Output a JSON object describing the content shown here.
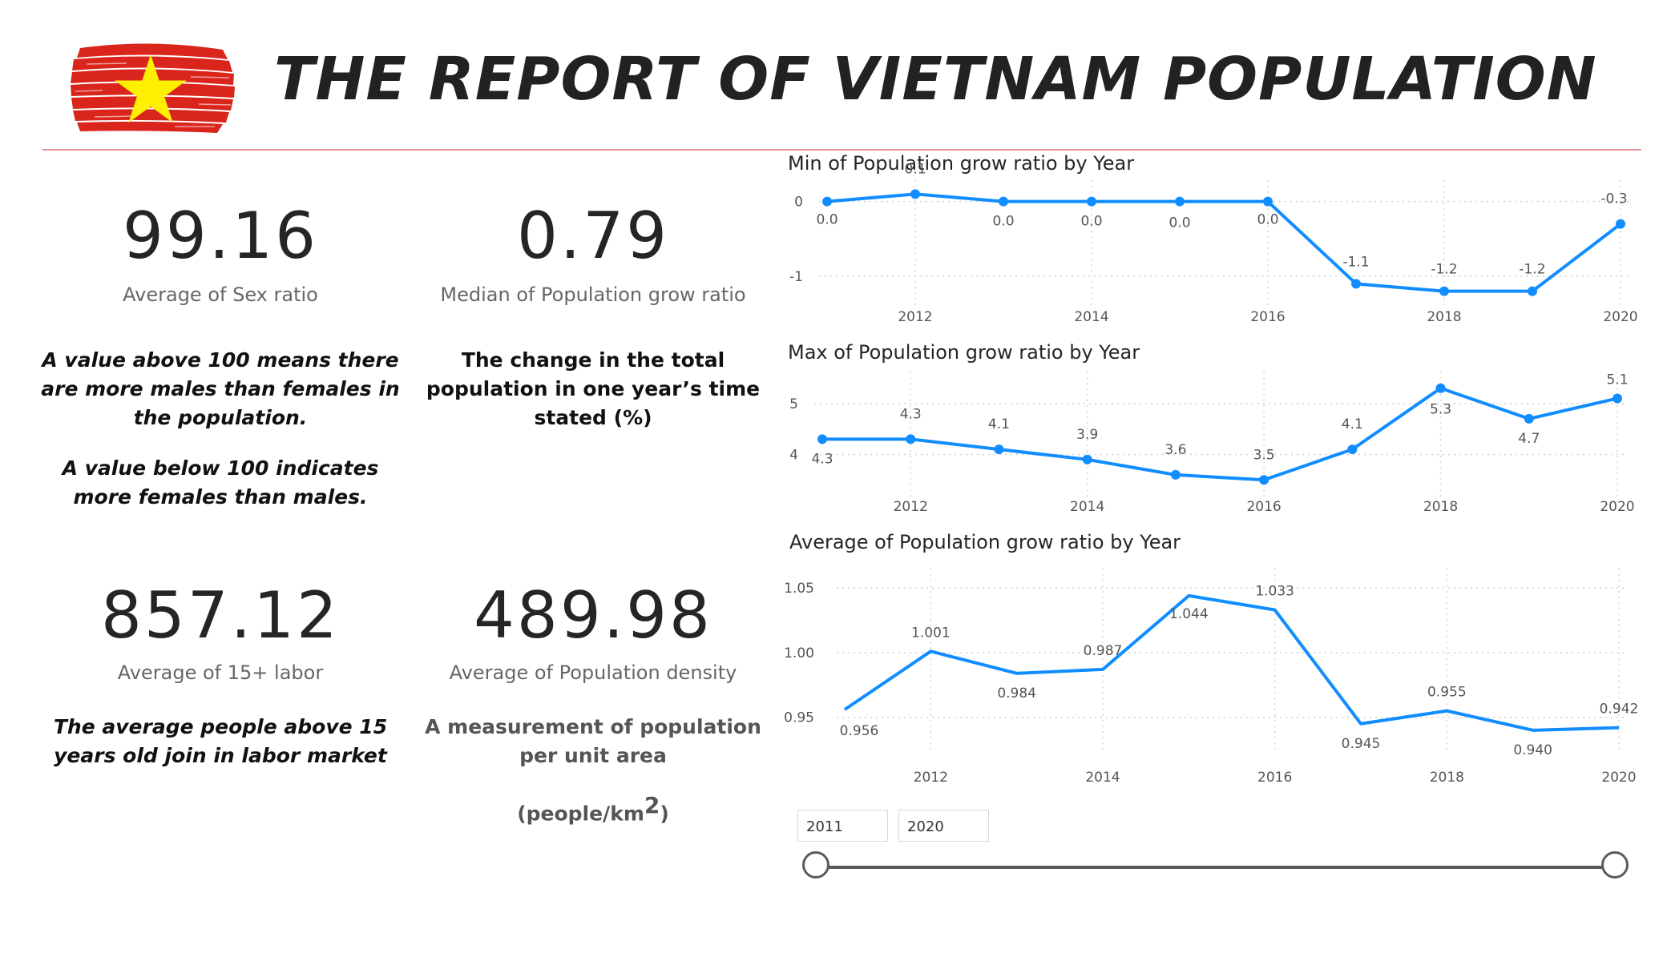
{
  "header": {
    "title": "THE REPORT OF VIETNAM POPULATION",
    "flag_colors": {
      "red": "#da251d",
      "star": "#ffef00"
    }
  },
  "kpis": {
    "sex_ratio": {
      "value": "99.16",
      "label": "Average of Sex ratio",
      "note_lines": [
        "A value above 100 means there",
        "are more males than females in",
        "the population.",
        "A value below 100 indicates",
        "more females than males."
      ]
    },
    "grow_ratio": {
      "value": "0.79",
      "label": "Median of Population grow ratio",
      "note_lines": [
        "The change in the total",
        "population in one year’s time",
        "stated (%)"
      ]
    },
    "labor": {
      "value": "857.12",
      "label": "Average of 15+ labor",
      "note_lines": [
        "The average people above 15",
        "years old join in labor market"
      ]
    },
    "density": {
      "value": "489.98",
      "label": "Average of Population density",
      "note_lines": [
        "A measurement of population",
        "per unit area"
      ],
      "unit_text": "(people/km",
      "unit_sup": "2",
      "unit_close": ")"
    }
  },
  "chart_data": [
    {
      "type": "line",
      "title": "Min of Population grow ratio by Year",
      "x": [
        2011,
        2012,
        2013,
        2014,
        2015,
        2016,
        2017,
        2018,
        2019,
        2020
      ],
      "x_ticks": [
        2012,
        2014,
        2016,
        2018,
        2020
      ],
      "y_ticks": [
        0,
        -1
      ],
      "ylim": [
        -1.3,
        0.2
      ],
      "series": [
        {
          "values": [
            0.0,
            0.1,
            0.0,
            0.0,
            0.0,
            0.0,
            -1.1,
            -1.2,
            -1.2,
            -0.3
          ],
          "labels": [
            "0.0",
            "0.1",
            "0.0",
            "0.0",
            "0.0",
            "0.0",
            "-1.1",
            "-1.2",
            "-1.2",
            "-0.3"
          ]
        }
      ],
      "line_color": "#118dff",
      "markers": true,
      "grid": true
    },
    {
      "type": "line",
      "title": "Max of Population grow ratio by Year",
      "x": [
        2011,
        2012,
        2013,
        2014,
        2015,
        2016,
        2017,
        2018,
        2019,
        2020
      ],
      "x_ticks": [
        2012,
        2014,
        2016,
        2018,
        2020
      ],
      "y_ticks": [
        5,
        4
      ],
      "ylim": [
        3.3,
        5.5
      ],
      "series": [
        {
          "values": [
            4.3,
            4.3,
            4.1,
            3.9,
            3.6,
            3.5,
            4.1,
            5.3,
            4.7,
            5.1
          ],
          "labels": [
            "4.3",
            "4.3",
            "4.1",
            "3.9",
            "3.6",
            "3.5",
            "4.1",
            "5.3",
            "4.7",
            "5.1"
          ]
        }
      ],
      "line_color": "#118dff",
      "markers": true,
      "grid": true
    },
    {
      "type": "line",
      "title": "Average of Population grow ratio by Year",
      "x": [
        2011,
        2012,
        2013,
        2014,
        2015,
        2016,
        2017,
        2018,
        2019,
        2020
      ],
      "x_ticks": [
        2012,
        2014,
        2016,
        2018,
        2020
      ],
      "y_ticks": [
        "1.05",
        "1.00",
        "0.95"
      ],
      "ylim": [
        0.93,
        1.06
      ],
      "series": [
        {
          "values": [
            0.956,
            1.001,
            0.984,
            0.987,
            1.044,
            1.033,
            0.945,
            0.955,
            0.94,
            0.942
          ],
          "labels": [
            "0.956",
            "1.001",
            "0.984",
            "0.987",
            "1.044",
            "1.033",
            "0.945",
            "0.955",
            "0.940",
            "0.942"
          ]
        }
      ],
      "line_color": "#118dff",
      "markers": false,
      "grid": true
    }
  ],
  "slicer": {
    "start": "2011",
    "end": "2020"
  }
}
